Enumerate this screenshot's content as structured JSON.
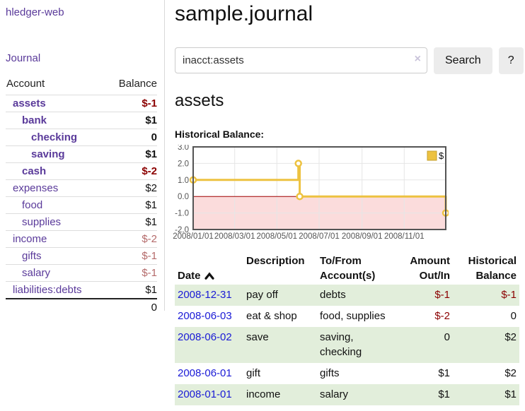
{
  "app": {
    "brand": "hledger-web",
    "nav_journal": "Journal"
  },
  "sidebar": {
    "headers": {
      "account": "Account",
      "balance": "Balance"
    },
    "accounts": [
      {
        "name": "assets",
        "balance": "$-1",
        "depth": 0,
        "bold": true,
        "tone": "negative"
      },
      {
        "name": "bank",
        "balance": "$1",
        "depth": 1,
        "bold": true,
        "tone": "normal"
      },
      {
        "name": "checking",
        "balance": "0",
        "depth": 2,
        "bold": true,
        "tone": "normal"
      },
      {
        "name": "saving",
        "balance": "$1",
        "depth": 2,
        "bold": true,
        "tone": "normal"
      },
      {
        "name": "cash",
        "balance": "$-2",
        "depth": 1,
        "bold": true,
        "tone": "negative"
      },
      {
        "name": "expenses",
        "balance": "$2",
        "depth": 0,
        "bold": false,
        "tone": "normal"
      },
      {
        "name": "food",
        "balance": "$1",
        "depth": 1,
        "bold": false,
        "tone": "normal"
      },
      {
        "name": "supplies",
        "balance": "$1",
        "depth": 1,
        "bold": false,
        "tone": "normal"
      },
      {
        "name": "income",
        "balance": "$-2",
        "depth": 0,
        "bold": false,
        "tone": "pale-negative"
      },
      {
        "name": "gifts",
        "balance": "$-1",
        "depth": 1,
        "bold": false,
        "tone": "pale-negative"
      },
      {
        "name": "salary",
        "balance": "$-1",
        "depth": 1,
        "bold": false,
        "tone": "pale-negative",
        "link": "blue"
      },
      {
        "name": "liabilities:debts",
        "balance": "$1",
        "depth": 0,
        "bold": false,
        "tone": "normal"
      }
    ],
    "total": "0"
  },
  "header": {
    "title": "sample.journal"
  },
  "search": {
    "value": "inacct:assets",
    "clear_icon": "×",
    "button": "Search",
    "help_button": "?"
  },
  "register": {
    "heading": "assets",
    "chart_label": "Historical Balance:",
    "columns": [
      "Date",
      "Description",
      "To/From\nAccount(s)",
      "Amount\nOut/In",
      "Historical\nBalance"
    ],
    "rows": [
      {
        "date": "2008-12-31",
        "description": "pay off",
        "accounts": "debts",
        "amount": "$-1",
        "balance": "$-1"
      },
      {
        "date": "2008-06-03",
        "description": "eat & shop",
        "accounts": "food, supplies",
        "amount": "$-2",
        "balance": "0"
      },
      {
        "date": "2008-06-02",
        "description": "save",
        "accounts": "saving, checking",
        "amount": "0",
        "balance": "$2"
      },
      {
        "date": "2008-06-01",
        "description": "gift",
        "accounts": "gifts",
        "amount": "$1",
        "balance": "$2"
      },
      {
        "date": "2008-01-01",
        "description": "income",
        "accounts": "salary",
        "amount": "$1",
        "balance": "$1"
      }
    ]
  },
  "chart_data": {
    "type": "line",
    "title": "Historical Balance",
    "step": true,
    "series": [
      {
        "name": "$",
        "color": "#edc240",
        "points": [
          [
            "2008-01-01",
            1
          ],
          [
            "2008-06-01",
            2
          ],
          [
            "2008-06-03",
            0
          ],
          [
            "2008-12-31",
            -1
          ]
        ]
      }
    ],
    "x_range": [
      "2008-01-01",
      "2008-12-31"
    ],
    "ylim": [
      -2,
      3
    ],
    "yticks": [
      3.0,
      2.0,
      1.0,
      0.0,
      -1.0,
      -2.0
    ],
    "xticks": [
      "2008/01/01",
      "2008/03/01",
      "2008/05/01",
      "2008/07/01",
      "2008/09/01",
      "2008/11/01"
    ],
    "legend": {
      "label": "$",
      "position": "top-right"
    },
    "grid": true,
    "negative_region_color": "#fbdcdc",
    "zero_line_color": "#a40000",
    "border_color": "#545454",
    "grid_color": "#e6e6e6",
    "tick_color": "#545454"
  }
}
